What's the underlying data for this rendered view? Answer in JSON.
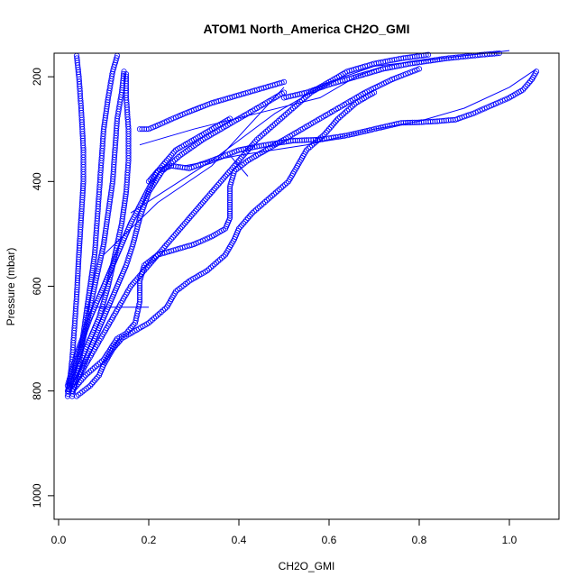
{
  "chart_data": {
    "type": "scatter",
    "title": "ATOM1 North_America CH2O_GMI",
    "xlabel": "CH2O_GMI",
    "ylabel": "Pressure (mbar)",
    "xlim": [
      -0.01,
      1.11
    ],
    "ylim": [
      1045,
      155
    ],
    "y_reversed": true,
    "xticks": [
      0.0,
      0.2,
      0.4,
      0.6,
      0.8,
      1.0
    ],
    "xtick_labels": [
      "0.0",
      "0.2",
      "0.4",
      "0.6",
      "0.8",
      "1.0"
    ],
    "yticks": [
      200,
      400,
      600,
      800,
      1000
    ],
    "ytick_labels": [
      "200",
      "400",
      "600",
      "800",
      "1000"
    ],
    "grid": false,
    "legend": "none",
    "marker": "open-circle",
    "color": "#0000ff",
    "series": [
      {
        "points": [
          [
            0.02,
            810
          ],
          [
            0.025,
            780
          ],
          [
            0.03,
            740
          ],
          [
            0.035,
            680
          ],
          [
            0.04,
            620
          ],
          [
            0.045,
            540
          ],
          [
            0.05,
            470
          ],
          [
            0.055,
            400
          ],
          [
            0.055,
            340
          ],
          [
            0.05,
            260
          ],
          [
            0.045,
            200
          ],
          [
            0.04,
            160
          ]
        ]
      },
      {
        "points": [
          [
            0.03,
            810
          ],
          [
            0.04,
            770
          ],
          [
            0.05,
            720
          ],
          [
            0.06,
            660
          ],
          [
            0.07,
            600
          ],
          [
            0.08,
            540
          ],
          [
            0.085,
            480
          ],
          [
            0.09,
            420
          ],
          [
            0.095,
            360
          ],
          [
            0.1,
            300
          ],
          [
            0.11,
            240
          ],
          [
            0.12,
            190
          ],
          [
            0.13,
            160
          ]
        ]
      },
      {
        "points": [
          [
            0.02,
            800
          ],
          [
            0.035,
            760
          ],
          [
            0.055,
            700
          ],
          [
            0.07,
            640
          ],
          [
            0.085,
            580
          ],
          [
            0.1,
            520
          ],
          [
            0.11,
            460
          ],
          [
            0.12,
            400
          ],
          [
            0.125,
            340
          ],
          [
            0.13,
            280
          ],
          [
            0.14,
            230
          ],
          [
            0.145,
            190
          ]
        ]
      },
      {
        "points": [
          [
            0.03,
            790
          ],
          [
            0.06,
            720
          ],
          [
            0.09,
            660
          ],
          [
            0.11,
            600
          ],
          [
            0.125,
            540
          ],
          [
            0.14,
            480
          ],
          [
            0.15,
            420
          ],
          [
            0.155,
            360
          ],
          [
            0.155,
            300
          ],
          [
            0.15,
            240
          ],
          [
            0.15,
            195
          ]
        ]
      },
      {
        "points": [
          [
            0.03,
            800
          ],
          [
            0.05,
            760
          ],
          [
            0.07,
            720
          ],
          [
            0.09,
            680
          ],
          [
            0.11,
            640
          ],
          [
            0.13,
            600
          ],
          [
            0.15,
            560
          ],
          [
            0.165,
            520
          ],
          [
            0.18,
            470
          ],
          [
            0.2,
            420
          ],
          [
            0.23,
            380
          ],
          [
            0.27,
            350
          ],
          [
            0.32,
            320
          ],
          [
            0.38,
            290
          ],
          [
            0.44,
            260
          ],
          [
            0.5,
            230
          ]
        ]
      },
      {
        "points": [
          [
            0.04,
            780
          ],
          [
            0.08,
            720
          ],
          [
            0.12,
            660
          ],
          [
            0.16,
            600
          ],
          [
            0.2,
            560
          ],
          [
            0.24,
            520
          ],
          [
            0.28,
            480
          ],
          [
            0.32,
            440
          ],
          [
            0.36,
            400
          ],
          [
            0.4,
            360
          ],
          [
            0.44,
            320
          ],
          [
            0.48,
            290
          ],
          [
            0.52,
            260
          ],
          [
            0.56,
            230
          ],
          [
            0.6,
            210
          ],
          [
            0.64,
            190
          ],
          [
            0.7,
            175
          ],
          [
            0.76,
            165
          ],
          [
            0.82,
            158
          ]
        ]
      },
      {
        "points": [
          [
            0.03,
            800
          ],
          [
            0.06,
            770
          ],
          [
            0.1,
            740
          ],
          [
            0.13,
            700
          ],
          [
            0.15,
            690
          ],
          [
            0.17,
            670
          ],
          [
            0.18,
            630
          ],
          [
            0.18,
            590
          ],
          [
            0.19,
            560
          ],
          [
            0.22,
            540
          ],
          [
            0.26,
            530
          ],
          [
            0.3,
            520
          ],
          [
            0.34,
            505
          ],
          [
            0.37,
            490
          ],
          [
            0.38,
            470
          ],
          [
            0.38,
            440
          ],
          [
            0.38,
            410
          ],
          [
            0.39,
            380
          ],
          [
            0.42,
            360
          ],
          [
            0.46,
            340
          ],
          [
            0.5,
            320
          ],
          [
            0.56,
            290
          ],
          [
            0.62,
            260
          ],
          [
            0.68,
            230
          ],
          [
            0.74,
            205
          ],
          [
            0.8,
            185
          ]
        ]
      },
      {
        "points": [
          [
            0.04,
            810
          ],
          [
            0.07,
            790
          ],
          [
            0.09,
            770
          ],
          [
            0.1,
            750
          ],
          [
            0.12,
            720
          ],
          [
            0.14,
            700
          ],
          [
            0.16,
            690
          ],
          [
            0.2,
            670
          ],
          [
            0.24,
            640
          ],
          [
            0.26,
            610
          ],
          [
            0.29,
            590
          ],
          [
            0.33,
            570
          ],
          [
            0.37,
            540
          ],
          [
            0.39,
            510
          ],
          [
            0.4,
            490
          ],
          [
            0.43,
            460
          ],
          [
            0.47,
            430
          ],
          [
            0.51,
            400
          ],
          [
            0.53,
            370
          ],
          [
            0.55,
            340
          ],
          [
            0.59,
            310
          ],
          [
            0.62,
            280
          ],
          [
            0.66,
            250
          ],
          [
            0.7,
            230
          ]
        ]
      },
      {
        "points": [
          [
            0.02,
            790
          ],
          [
            0.04,
            730
          ],
          [
            0.07,
            660
          ],
          [
            0.1,
            600
          ],
          [
            0.13,
            540
          ],
          [
            0.16,
            480
          ],
          [
            0.19,
            430
          ],
          [
            0.22,
            380
          ],
          [
            0.26,
            340
          ],
          [
            0.3,
            320
          ],
          [
            0.34,
            300
          ],
          [
            0.38,
            280
          ]
        ]
      },
      {
        "points": [
          [
            0.2,
            400
          ],
          [
            0.22,
            380
          ],
          [
            0.25,
            370
          ],
          [
            0.29,
            375
          ],
          [
            0.34,
            360
          ],
          [
            0.4,
            340
          ],
          [
            0.46,
            330
          ],
          [
            0.52,
            322
          ],
          [
            0.58,
            320
          ],
          [
            0.64,
            312
          ],
          [
            0.7,
            300
          ],
          [
            0.76,
            288
          ],
          [
            0.8,
            287
          ],
          [
            0.84,
            285
          ],
          [
            0.88,
            282
          ],
          [
            0.92,
            270
          ],
          [
            0.96,
            255
          ],
          [
            1.0,
            240
          ],
          [
            1.03,
            225
          ],
          [
            1.05,
            205
          ],
          [
            1.06,
            190
          ]
        ]
      },
      {
        "points": [
          [
            0.18,
            300
          ],
          [
            0.2,
            300
          ],
          [
            0.24,
            285
          ],
          [
            0.28,
            270
          ],
          [
            0.34,
            250
          ],
          [
            0.4,
            235
          ],
          [
            0.46,
            220
          ],
          [
            0.5,
            210
          ]
        ]
      },
      {
        "points": [
          [
            0.5,
            240
          ],
          [
            0.55,
            230
          ],
          [
            0.6,
            215
          ],
          [
            0.66,
            200
          ],
          [
            0.72,
            185
          ],
          [
            0.78,
            175
          ],
          [
            0.86,
            165
          ],
          [
            0.94,
            158
          ],
          [
            1.02,
            152
          ]
        ]
      }
    ],
    "segments": [
      {
        "points": [
          [
            0.06,
            640
          ],
          [
            0.2,
            640
          ]
        ]
      },
      {
        "points": [
          [
            0.1,
            750
          ],
          [
            0.14,
            700
          ]
        ]
      },
      {
        "points": [
          [
            0.1,
            540
          ],
          [
            0.22,
            440
          ],
          [
            0.34,
            370
          ],
          [
            0.5,
            220
          ]
        ]
      },
      {
        "points": [
          [
            0.16,
            460
          ],
          [
            0.34,
            360
          ],
          [
            0.48,
            270
          ],
          [
            0.6,
            210
          ],
          [
            0.7,
            180
          ],
          [
            0.8,
            170
          ],
          [
            0.9,
            160
          ],
          [
            1.0,
            150
          ]
        ]
      },
      {
        "points": [
          [
            0.28,
            370
          ],
          [
            0.4,
            350
          ],
          [
            0.55,
            330
          ],
          [
            0.7,
            300
          ],
          [
            0.8,
            285
          ],
          [
            0.9,
            260
          ],
          [
            1.0,
            220
          ],
          [
            1.06,
            185
          ]
        ]
      },
      {
        "points": [
          [
            0.18,
            330
          ],
          [
            0.3,
            300
          ],
          [
            0.44,
            270
          ],
          [
            0.58,
            240
          ],
          [
            0.66,
            200
          ],
          [
            0.72,
            180
          ]
        ]
      },
      {
        "points": [
          [
            0.38,
            350
          ],
          [
            0.4,
            370
          ],
          [
            0.42,
            390
          ]
        ]
      }
    ]
  }
}
